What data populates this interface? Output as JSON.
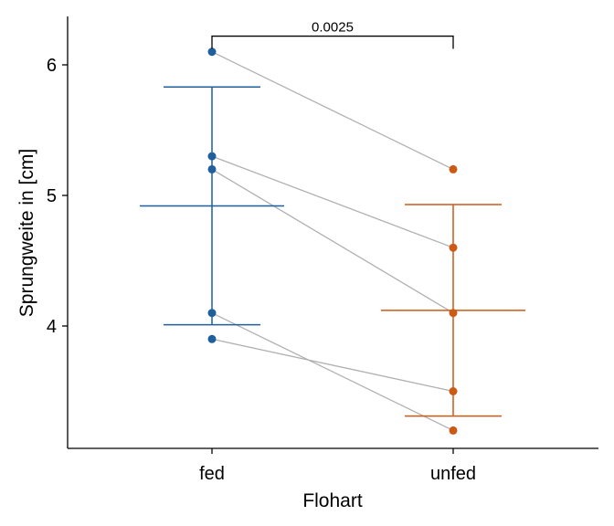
{
  "chart_data": {
    "type": "scatter",
    "title": "",
    "xlabel": "Flohart",
    "ylabel": "Sprungweite in [cm]",
    "categories": [
      "fed",
      "unfed"
    ],
    "yticks": [
      4,
      5,
      6
    ],
    "ylim": [
      3.1,
      6.4
    ],
    "grid": false,
    "legend": "none",
    "colors": {
      "fed": "#1f5f9e",
      "unfed": "#cc5a14",
      "pair_line": "#b0b0b0"
    },
    "pairs": [
      {
        "fed": 6.1,
        "unfed": 5.2
      },
      {
        "fed": 5.3,
        "unfed": 4.6
      },
      {
        "fed": 5.2,
        "unfed": 4.1
      },
      {
        "fed": 4.1,
        "unfed": 3.2
      },
      {
        "fed": 3.9,
        "unfed": 3.5
      }
    ],
    "summary": [
      {
        "category": "fed",
        "mean": 4.92,
        "lower": 4.01,
        "upper": 5.83
      },
      {
        "category": "unfed",
        "mean": 4.12,
        "lower": 3.31,
        "upper": 4.93
      }
    ],
    "significance": {
      "label": "0.0025",
      "y": 6.22
    }
  }
}
